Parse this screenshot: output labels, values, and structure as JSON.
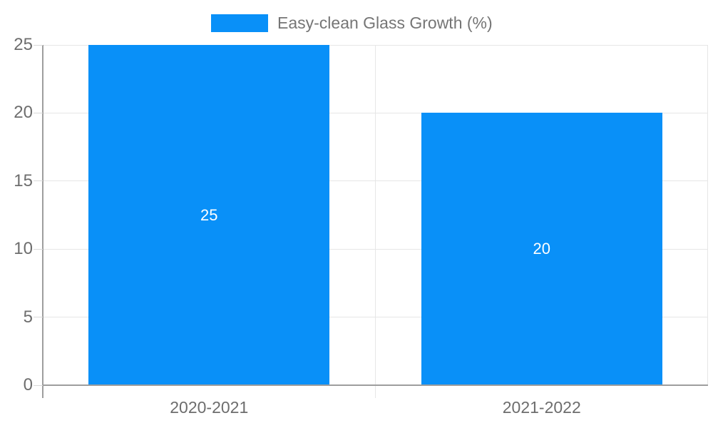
{
  "legend": {
    "label": "Easy-clean Glass Growth (%)"
  },
  "chart_data": {
    "type": "bar",
    "title": "",
    "categories": [
      "2020-2021",
      "2021-2022"
    ],
    "series": [
      {
        "name": "Easy-clean Glass Growth (%)",
        "values": [
          25,
          20
        ],
        "color": "#0990f8"
      }
    ],
    "data_labels": [
      "25",
      "20"
    ],
    "xlabel": "",
    "ylabel": "",
    "ylim": [
      0,
      25
    ],
    "yticks": [
      0,
      5,
      10,
      15,
      20,
      25
    ],
    "grid": true,
    "legend_position": "top",
    "bar_width_ratio": 0.725
  },
  "colors": {
    "bar": "#0990f8",
    "gridline": "#e6e6e6",
    "baseline": "#9e9e9e",
    "axis_line": "#9e9e9e",
    "tick": "#d9d9d9",
    "axis_text": "#6d6d6d",
    "legend_text": "#757575",
    "data_label_text": "#ffffff",
    "background": "#ffffff"
  }
}
